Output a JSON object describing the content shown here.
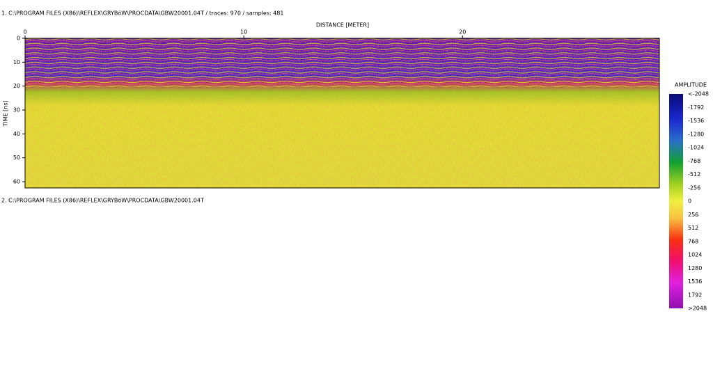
{
  "header": {
    "line1": "1. C:\\PROGRAM FILES (X86)\\REFLEX\\GRYBöW\\PROCDATA\\GBW20001.04T / traces: 970 / samples: 481",
    "line2": "2. C:\\PROGRAM FILES (X86)\\REFLEX\\GRYBöW\\PROCDATA\\GBW20001.04T"
  },
  "profile": {
    "x_axis_title": "DISTANCE [METER]",
    "y_axis_title": "TIME [ns]",
    "xlim": [
      0,
      29
    ],
    "ylim": [
      0,
      62.6
    ],
    "xticks": [
      0,
      10,
      20
    ],
    "yticks": [
      0,
      10,
      20,
      30,
      40,
      50,
      60
    ]
  },
  "colorbar": {
    "title": "AMPLITUDE",
    "labels": [
      "<-2048",
      "-1792",
      "-1536",
      "-1280",
      "-1024",
      "-768",
      "-512",
      "-256",
      "0",
      "256",
      "512",
      "768",
      "1024",
      "1280",
      "1536",
      "1792",
      ">2048"
    ]
  }
}
